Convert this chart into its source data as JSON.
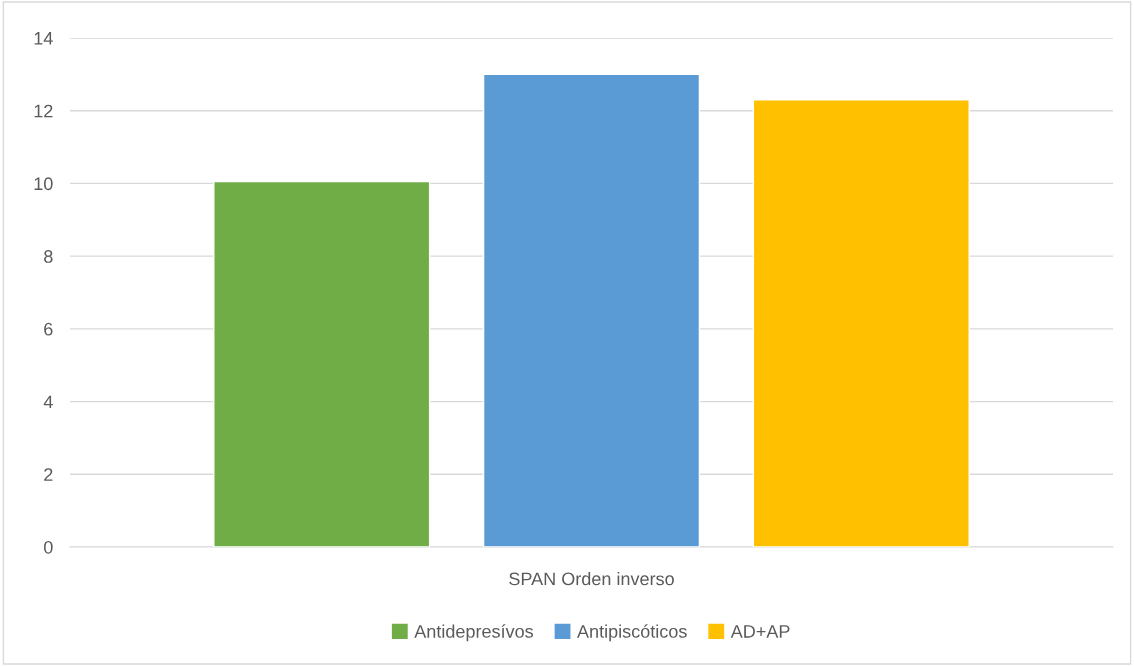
{
  "chart_data": {
    "type": "bar",
    "categories": [
      "SPAN Orden inverso"
    ],
    "series": [
      {
        "name": "Antidepresívos",
        "color": "#70ad47",
        "values": [
          10.05
        ]
      },
      {
        "name": "Antipiscóticos",
        "color": "#5b9bd5",
        "values": [
          13
        ]
      },
      {
        "name": "AD+AP",
        "color": "#ffc000",
        "values": [
          12.3
        ]
      }
    ],
    "ylim": [
      0,
      14
    ],
    "yticks": [
      0,
      2,
      4,
      6,
      8,
      10,
      12,
      14
    ],
    "grid": "y",
    "legend": "bottom"
  }
}
